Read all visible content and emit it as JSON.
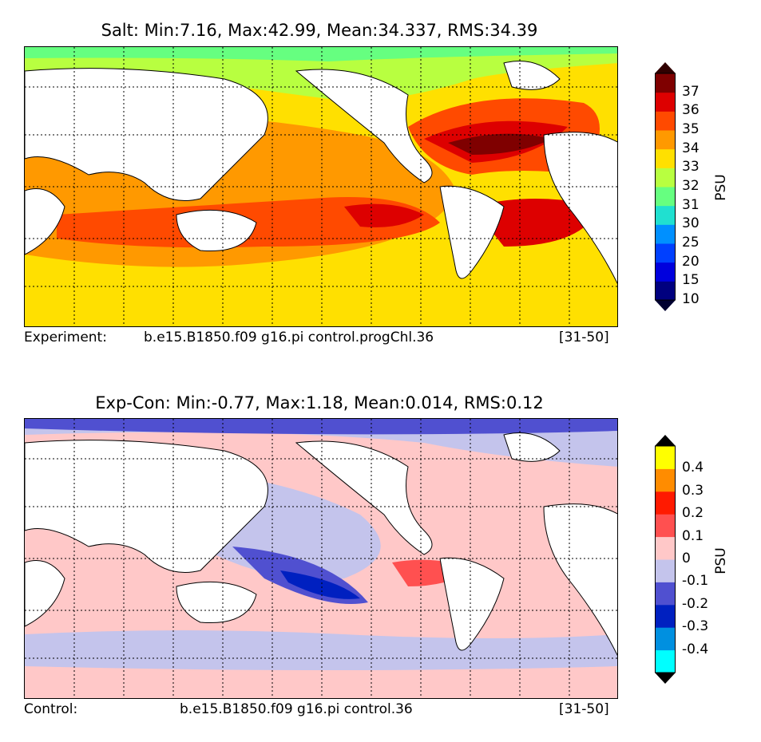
{
  "chart_data": [
    {
      "type": "heatmap",
      "title": "Salt: Min:7.16, Max:42.99, Mean:34.337, RMS:34.39",
      "caption_left": "Experiment:",
      "caption_case": "b.e15.B1850.f09 g16.pi control.progChl.36",
      "caption_right": "[31-50]",
      "colorbar_label": "PSU",
      "colorbar_levels": [
        "10",
        "15",
        "20",
        "25",
        "30",
        "31",
        "32",
        "33",
        "34",
        "35",
        "36",
        "37"
      ],
      "colorbar_colors": [
        "#00007f",
        "#0000dd",
        "#0040ff",
        "#0090ff",
        "#20e0d0",
        "#66ff80",
        "#b8ff40",
        "#ffe000",
        "#ff9900",
        "#ff4a00",
        "#dd0000",
        "#7f0000"
      ],
      "stats": {
        "min": 7.16,
        "max": 42.99,
        "mean": 34.337,
        "rms": 34.39
      }
    },
    {
      "type": "heatmap",
      "title": "Exp-Con: Min:-0.77, Max:1.18, Mean:0.014, RMS:0.12",
      "caption_left": "Control:",
      "caption_case": "b.e15.B1850.f09 g16.pi control.36",
      "caption_right": "[31-50]",
      "colorbar_label": "PSU",
      "colorbar_levels": [
        "-0.4",
        "-0.3",
        "-0.2",
        "-0.1",
        "0",
        "0.1",
        "0.2",
        "0.3",
        "0.4"
      ],
      "colorbar_colors": [
        "#00ffff",
        "#0090e0",
        "#0020c0",
        "#5050d0",
        "#c4c4ec",
        "#ffc8c8",
        "#ff5050",
        "#ff1a00",
        "#ff8c00",
        "#ffff00"
      ],
      "stats": {
        "min": -0.77,
        "max": 1.18,
        "mean": 0.014,
        "rms": 0.12
      }
    }
  ]
}
